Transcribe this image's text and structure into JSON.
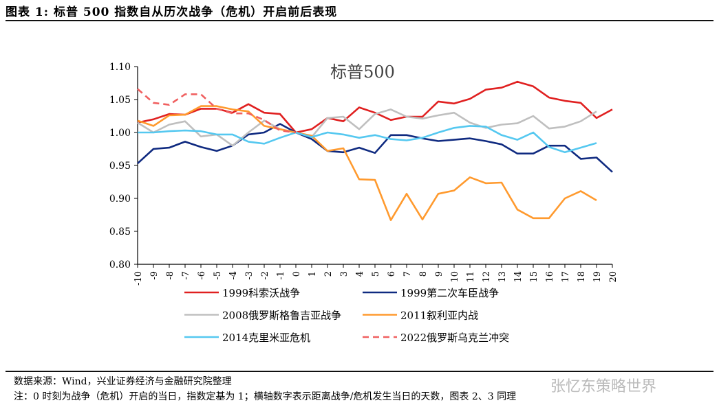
{
  "header": {
    "title": "图表 1:   标普 500 指数自从历次战争（危机）开启前后表现"
  },
  "footer": {
    "source": "数据来源：Wind，兴业证券经济与金融研究院整理",
    "note": "注：0 时刻为战争（危机）开启的当日，指数定基为 1；横轴数字表示距离战争/危机发生当日的天数，图表 2、3 同理",
    "watermark": "张忆东策略世界"
  },
  "chart_data": {
    "type": "line",
    "title": "标普500",
    "ylim": [
      0.8,
      1.1
    ],
    "yticks": [
      "0.80",
      "0.85",
      "0.90",
      "0.95",
      "1.00",
      "1.05",
      "1.10"
    ],
    "x": [
      -10,
      -9,
      -8,
      -7,
      -6,
      -5,
      -4,
      -3,
      -2,
      -1,
      0,
      1,
      2,
      3,
      4,
      5,
      6,
      7,
      8,
      9,
      10,
      11,
      12,
      13,
      14,
      15,
      16,
      17,
      18,
      19,
      20
    ],
    "grid": false,
    "legend": "bottom",
    "series": [
      {
        "name": "1999科索沃战争",
        "color": "#e02020",
        "dash": false,
        "values": [
          1.015,
          1.02,
          1.028,
          1.027,
          1.036,
          1.036,
          1.03,
          1.043,
          1.03,
          1.028,
          1.0,
          1.005,
          1.022,
          1.017,
          1.038,
          1.03,
          1.019,
          1.024,
          1.024,
          1.047,
          1.044,
          1.051,
          1.065,
          1.068,
          1.077,
          1.07,
          1.053,
          1.048,
          1.045,
          1.022,
          1.035
        ]
      },
      {
        "name": "1999第二次车臣战争",
        "color": "#0f2a80",
        "dash": false,
        "values": [
          0.953,
          0.975,
          0.977,
          0.986,
          0.978,
          0.972,
          0.98,
          0.997,
          1.0,
          1.013,
          1.0,
          0.99,
          0.972,
          0.97,
          0.977,
          0.969,
          0.996,
          0.996,
          0.991,
          0.987,
          0.989,
          0.991,
          0.987,
          0.982,
          0.968,
          0.968,
          0.98,
          0.98,
          0.96,
          0.962,
          0.94
        ]
      },
      {
        "name": "2008俄罗斯格鲁吉亚战争",
        "color": "#bfbfbf",
        "dash": false,
        "values": [
          1.015,
          1.0,
          1.012,
          1.017,
          0.994,
          0.997,
          0.98,
          1.0,
          1.018,
          1.005,
          1.0,
          0.993,
          1.022,
          1.024,
          1.005,
          1.028,
          1.035,
          1.024,
          1.021,
          1.026,
          1.03,
          1.015,
          1.007,
          1.012,
          1.014,
          1.025,
          1.006,
          1.009,
          1.017,
          1.032,
          null
        ]
      },
      {
        "name": "2011叙利亚内战",
        "color": "#ff9a2e",
        "dash": false,
        "values": [
          1.018,
          1.01,
          1.026,
          1.027,
          1.04,
          1.04,
          1.035,
          1.032,
          1.01,
          1.005,
          1.0,
          0.995,
          0.972,
          0.976,
          0.929,
          0.928,
          0.867,
          0.907,
          0.868,
          0.907,
          0.912,
          0.932,
          0.923,
          0.924,
          0.883,
          0.87,
          0.87,
          0.9,
          0.911,
          0.897,
          null
        ]
      },
      {
        "name": "2014克里米亚危机",
        "color": "#55c8f0",
        "dash": false,
        "values": [
          1.0,
          1.0,
          1.002,
          1.003,
          1.002,
          0.997,
          0.997,
          0.986,
          0.983,
          0.992,
          1.0,
          0.993,
          1.0,
          0.997,
          0.992,
          0.996,
          0.99,
          0.988,
          0.992,
          1.0,
          1.007,
          1.01,
          1.009,
          0.996,
          0.989,
          1.0,
          0.978,
          0.97,
          0.977,
          0.984,
          null
        ]
      },
      {
        "name": "2022俄罗斯乌克兰冲突",
        "color": "#f06060",
        "dash": true,
        "values": [
          1.066,
          1.045,
          1.042,
          1.058,
          1.058,
          1.036,
          1.029,
          1.029,
          1.019,
          1.003,
          1.0,
          null,
          null,
          null,
          null,
          null,
          null,
          null,
          null,
          null,
          null,
          null,
          null,
          null,
          null,
          null,
          null,
          null,
          null,
          null,
          null
        ]
      }
    ]
  }
}
